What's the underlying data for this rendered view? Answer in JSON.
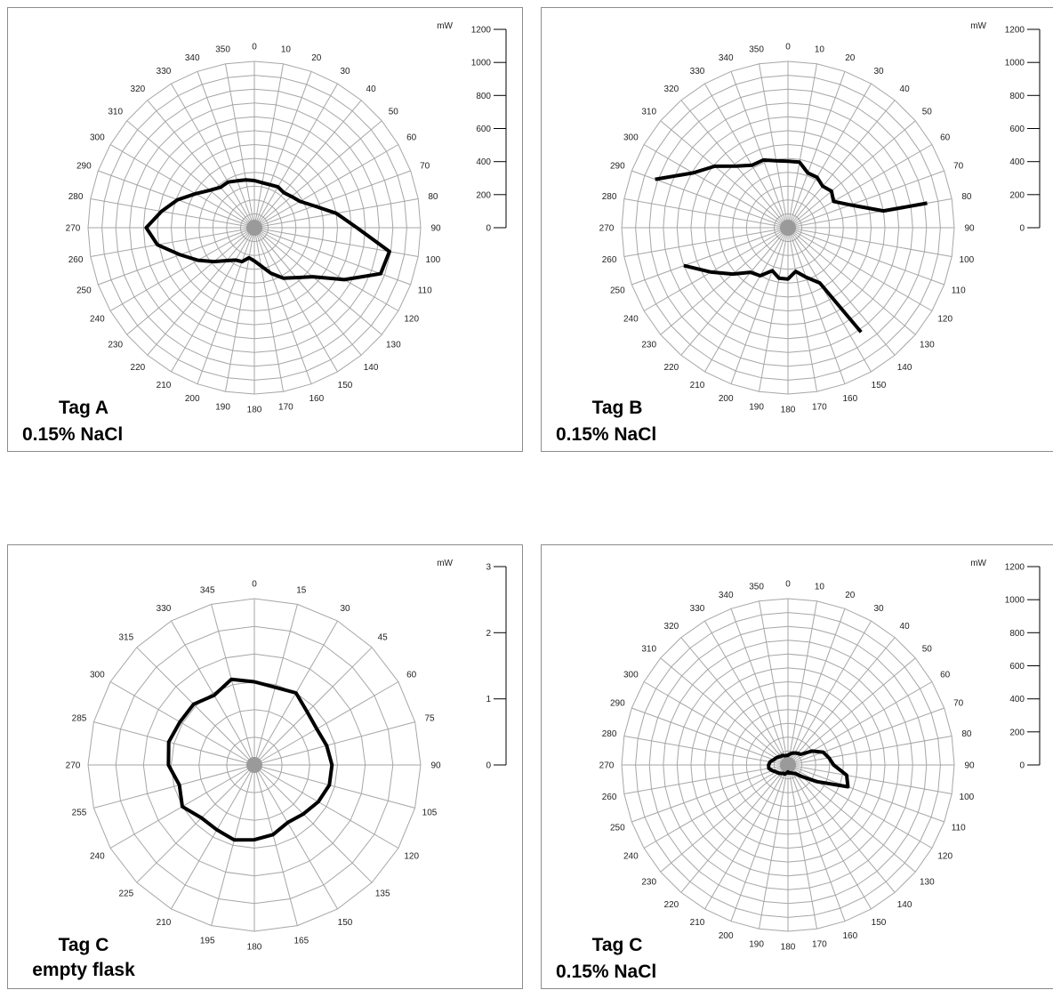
{
  "chart_data": [
    {
      "type": "polar-line",
      "caption_line1": "Tag A",
      "caption_line2": "0.15% NaCl",
      "unit": "mW",
      "r_max": 1200,
      "ring_step": 100,
      "scale_ticks": [
        "1200",
        "1000",
        "800",
        "600",
        "400",
        "200",
        "0"
      ],
      "angle_labels": [
        "0",
        "10",
        "20",
        "30",
        "40",
        "50",
        "60",
        "70",
        "80",
        "90",
        "100",
        "110",
        "120",
        "130",
        "140",
        "150",
        "160",
        "170",
        "180",
        "190",
        "200",
        "210",
        "220",
        "230",
        "240",
        "250",
        "260",
        "270",
        "280",
        "290",
        "300",
        "310",
        "320",
        "330",
        "340",
        "350"
      ],
      "series": [
        {
          "closed": true,
          "points": [
            [
              0,
              340
            ],
            [
              10,
              330
            ],
            [
              20,
              330
            ],
            [
              30,
              340
            ],
            [
              40,
              330
            ],
            [
              50,
              350
            ],
            [
              60,
              380
            ],
            [
              70,
              460
            ],
            [
              80,
              600
            ],
            [
              90,
              740
            ],
            [
              100,
              990
            ],
            [
              110,
              970
            ],
            [
              120,
              750
            ],
            [
              130,
              550
            ],
            [
              140,
              470
            ],
            [
              150,
              420
            ],
            [
              160,
              350
            ],
            [
              170,
              280
            ],
            [
              180,
              240
            ],
            [
              190,
              220
            ],
            [
              200,
              260
            ],
            [
              210,
              270
            ],
            [
              220,
              310
            ],
            [
              230,
              380
            ],
            [
              240,
              470
            ],
            [
              250,
              570
            ],
            [
              260,
              710
            ],
            [
              270,
              780
            ],
            [
              280,
              680
            ],
            [
              290,
              590
            ],
            [
              300,
              490
            ],
            [
              310,
              420
            ],
            [
              320,
              380
            ],
            [
              330,
              380
            ],
            [
              340,
              360
            ],
            [
              350,
              350
            ]
          ]
        }
      ]
    },
    {
      "type": "polar-line",
      "caption_line1": "Tag B",
      "caption_line2": "0.15% NaCl",
      "unit": "mW",
      "r_max": 1200,
      "ring_step": 100,
      "scale_ticks": [
        "1200",
        "1000",
        "800",
        "600",
        "400",
        "200",
        "0"
      ],
      "angle_labels": [
        "0",
        "10",
        "20",
        "30",
        "40",
        "50",
        "60",
        "70",
        "80",
        "90",
        "100",
        "110",
        "120",
        "130",
        "140",
        "150",
        "160",
        "170",
        "180",
        "190",
        "200",
        "210",
        "220",
        "230",
        "240",
        "250",
        "260",
        "270",
        "280",
        "290",
        "300",
        "310",
        "320",
        "330",
        "340",
        "350"
      ],
      "series": [
        {
          "closed": false,
          "points": [
            [
              290,
              1020
            ],
            [
              300,
              790
            ],
            [
              310,
              690
            ],
            [
              320,
              580
            ],
            [
              330,
              520
            ],
            [
              340,
              520
            ],
            [
              350,
              490
            ],
            [
              0,
              480
            ],
            [
              10,
              480
            ],
            [
              20,
              420
            ],
            [
              30,
              420
            ],
            [
              40,
              390
            ],
            [
              50,
              410
            ],
            [
              60,
              380
            ],
            [
              70,
              480
            ],
            [
              80,
              700
            ],
            [
              80,
              1020
            ]
          ]
        },
        {
          "closed": false,
          "points": [
            [
              250,
              800
            ],
            [
              240,
              640
            ],
            [
              230,
              520
            ],
            [
              220,
              420
            ],
            [
              210,
              400
            ],
            [
              200,
              330
            ],
            [
              190,
              370
            ],
            [
              180,
              370
            ],
            [
              170,
              320
            ],
            [
              160,
              380
            ],
            [
              150,
              460
            ],
            [
              145,
              920
            ]
          ]
        }
      ]
    },
    {
      "type": "polar-line",
      "caption_line1": "Tag C",
      "caption_line2": "empty flask",
      "unit": "mW",
      "r_max": 3,
      "ring_step": 0.5,
      "scale_ticks": [
        "3",
        "2",
        "1",
        "0"
      ],
      "angle_labels": [
        "0",
        "15",
        "30",
        "45",
        "60",
        "75",
        "90",
        "105",
        "120",
        "135",
        "150",
        "165",
        "180",
        "195",
        "210",
        "225",
        "240",
        "255",
        "270",
        "285",
        "300",
        "315",
        "330",
        "345"
      ],
      "series": [
        {
          "closed": true,
          "points": [
            [
              0,
              1.5
            ],
            [
              15,
              1.45
            ],
            [
              30,
              1.5
            ],
            [
              45,
              1.35
            ],
            [
              60,
              1.3
            ],
            [
              75,
              1.35
            ],
            [
              90,
              1.4
            ],
            [
              105,
              1.4
            ],
            [
              120,
              1.33
            ],
            [
              135,
              1.25
            ],
            [
              150,
              1.2
            ],
            [
              165,
              1.3
            ],
            [
              180,
              1.35
            ],
            [
              195,
              1.4
            ],
            [
              210,
              1.35
            ],
            [
              225,
              1.35
            ],
            [
              240,
              1.5
            ],
            [
              255,
              1.4
            ],
            [
              270,
              1.55
            ],
            [
              285,
              1.6
            ],
            [
              300,
              1.55
            ],
            [
              315,
              1.55
            ],
            [
              330,
              1.45
            ],
            [
              345,
              1.6
            ]
          ]
        }
      ]
    },
    {
      "type": "polar-line",
      "caption_line1": "Tag C",
      "caption_line2": "0.15% NaCl",
      "unit": "mW",
      "r_max": 1200,
      "ring_step": 100,
      "scale_ticks": [
        "1200",
        "1000",
        "800",
        "600",
        "400",
        "200",
        "0"
      ],
      "angle_labels": [
        "0",
        "10",
        "20",
        "30",
        "40",
        "50",
        "60",
        "70",
        "80",
        "90",
        "100",
        "110",
        "120",
        "130",
        "140",
        "150",
        "160",
        "170",
        "180",
        "190",
        "200",
        "210",
        "220",
        "230",
        "240",
        "250",
        "260",
        "270",
        "280",
        "290",
        "300",
        "310",
        "320",
        "330",
        "340",
        "350"
      ],
      "series": [
        {
          "closed": true,
          "points": [
            [
              0,
              70
            ],
            [
              10,
              80
            ],
            [
              20,
              90
            ],
            [
              30,
              100
            ],
            [
              40,
              110
            ],
            [
              50,
              120
            ],
            [
              60,
              200
            ],
            [
              70,
              270
            ],
            [
              80,
              300
            ],
            [
              90,
              330
            ],
            [
              100,
              430
            ],
            [
              110,
              460
            ],
            [
              120,
              240
            ],
            [
              130,
              130
            ],
            [
              140,
              80
            ],
            [
              150,
              70
            ],
            [
              160,
              60
            ],
            [
              170,
              60
            ],
            [
              180,
              50
            ],
            [
              190,
              60
            ],
            [
              200,
              70
            ],
            [
              210,
              70
            ],
            [
              220,
              80
            ],
            [
              230,
              90
            ],
            [
              240,
              100
            ],
            [
              250,
              120
            ],
            [
              260,
              140
            ],
            [
              270,
              140
            ],
            [
              280,
              130
            ],
            [
              290,
              110
            ],
            [
              300,
              100
            ],
            [
              310,
              90
            ],
            [
              320,
              80
            ],
            [
              330,
              80
            ],
            [
              340,
              70
            ],
            [
              350,
              70
            ]
          ]
        }
      ]
    }
  ]
}
